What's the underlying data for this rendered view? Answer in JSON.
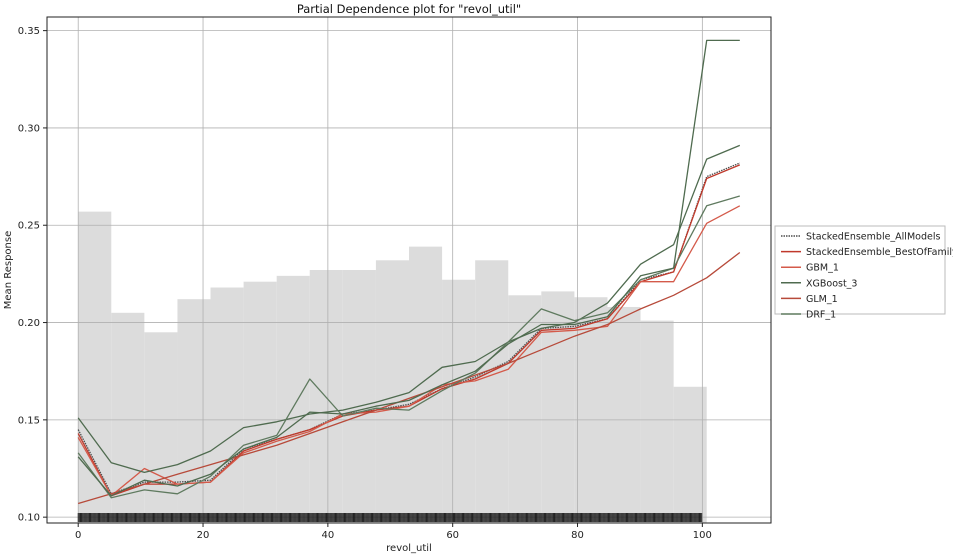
{
  "chart_data": {
    "type": "line",
    "title": "Partial Dependence plot for \"revol_util\"",
    "xlabel": "revol_util",
    "ylabel": "Mean Response",
    "xlim": [
      -5,
      111
    ],
    "ylim": [
      0.097,
      0.357
    ],
    "x_ticks": [
      0,
      20,
      40,
      60,
      80,
      100
    ],
    "y_ticks": [
      0.1,
      0.15,
      0.2,
      0.25,
      0.3,
      0.35
    ],
    "y_tick_labels": [
      "0.10",
      "0.15",
      "0.20",
      "0.25",
      "0.30",
      "0.35"
    ],
    "grid": true,
    "legend_position": "right",
    "x": [
      0,
      5.3,
      10.6,
      15.9,
      21.2,
      26.5,
      31.8,
      37.1,
      42.4,
      47.7,
      53,
      58.3,
      63.6,
      68.9,
      74.2,
      79.5,
      84.8,
      90.1,
      95.4,
      100.7,
      106
    ],
    "series": [
      {
        "name": "StackedEnsemble_AllModels",
        "color": "#4d4d4d",
        "dashed": true,
        "values": [
          0.145,
          0.112,
          0.118,
          0.118,
          0.119,
          0.135,
          0.14,
          0.145,
          0.153,
          0.155,
          0.158,
          0.166,
          0.172,
          0.18,
          0.197,
          0.198,
          0.202,
          0.222,
          0.226,
          0.275,
          0.282
        ]
      },
      {
        "name": "StackedEnsemble_BestOfFamily",
        "color": "#c0392b",
        "values": [
          0.143,
          0.111,
          0.117,
          0.117,
          0.118,
          0.134,
          0.14,
          0.145,
          0.152,
          0.155,
          0.157,
          0.166,
          0.171,
          0.179,
          0.196,
          0.197,
          0.202,
          0.221,
          0.226,
          0.274,
          0.281
        ]
      },
      {
        "name": "GBM_1",
        "color": "#d45a4a",
        "values": [
          0.141,
          0.111,
          0.125,
          0.117,
          0.118,
          0.133,
          0.139,
          0.144,
          0.153,
          0.154,
          0.157,
          0.168,
          0.17,
          0.176,
          0.195,
          0.196,
          0.198,
          0.221,
          0.221,
          0.251,
          0.26
        ]
      },
      {
        "name": "XGBoost_3",
        "color": "#4f6b4f",
        "values": [
          0.151,
          0.128,
          0.123,
          0.127,
          0.134,
          0.146,
          0.149,
          0.153,
          0.155,
          0.159,
          0.164,
          0.177,
          0.18,
          0.19,
          0.197,
          0.2,
          0.21,
          0.23,
          0.24,
          0.284,
          0.291
        ]
      },
      {
        "name": "GLM_1",
        "color": "#b74a3a",
        "values": [
          0.107,
          0.112,
          0.117,
          0.122,
          0.127,
          0.132,
          0.137,
          0.143,
          0.149,
          0.155,
          0.161,
          0.167,
          0.173,
          0.179,
          0.186,
          0.193,
          0.199,
          0.207,
          0.214,
          0.223,
          0.236
        ]
      },
      {
        "name": "DRF_1",
        "color": "#5f7a5f",
        "values": [
          0.133,
          0.11,
          0.114,
          0.112,
          0.121,
          0.137,
          0.142,
          0.171,
          0.152,
          0.156,
          0.155,
          0.165,
          0.174,
          0.19,
          0.207,
          0.201,
          0.205,
          0.222,
          0.228,
          0.26,
          0.265
        ]
      }
    ],
    "highlight_series": {
      "name": "",
      "color": "#4f6b4f",
      "values": [
        0.131,
        0.111,
        0.119,
        0.116,
        0.122,
        0.135,
        0.141,
        0.154,
        0.153,
        0.157,
        0.16,
        0.168,
        0.175,
        0.189,
        0.199,
        0.199,
        0.203,
        0.224,
        0.228,
        0.345,
        0.345
      ]
    },
    "histogram": {
      "color": "#dcdcdc",
      "bins": [
        {
          "x0": 0,
          "x1": 5.3,
          "height": 0.257
        },
        {
          "x0": 5.3,
          "x1": 10.6,
          "height": 0.205
        },
        {
          "x0": 10.6,
          "x1": 15.9,
          "height": 0.195
        },
        {
          "x0": 15.9,
          "x1": 21.2,
          "height": 0.212
        },
        {
          "x0": 21.2,
          "x1": 26.5,
          "height": 0.218
        },
        {
          "x0": 26.5,
          "x1": 31.8,
          "height": 0.221
        },
        {
          "x0": 31.8,
          "x1": 37.1,
          "height": 0.224
        },
        {
          "x0": 37.1,
          "x1": 42.4,
          "height": 0.227
        },
        {
          "x0": 42.4,
          "x1": 47.7,
          "height": 0.227
        },
        {
          "x0": 47.7,
          "x1": 53,
          "height": 0.232
        },
        {
          "x0": 53,
          "x1": 58.3,
          "height": 0.239
        },
        {
          "x0": 58.3,
          "x1": 63.6,
          "height": 0.222
        },
        {
          "x0": 63.6,
          "x1": 68.9,
          "height": 0.232
        },
        {
          "x0": 68.9,
          "x1": 74.2,
          "height": 0.214
        },
        {
          "x0": 74.2,
          "x1": 79.5,
          "height": 0.216
        },
        {
          "x0": 79.5,
          "x1": 84.8,
          "height": 0.213
        },
        {
          "x0": 84.8,
          "x1": 90.1,
          "height": 0.208
        },
        {
          "x0": 90.1,
          "x1": 95.4,
          "height": 0.201
        },
        {
          "x0": 95.4,
          "x1": 100.7,
          "height": 0.167
        }
      ]
    },
    "rug": {
      "color": "#111111",
      "x_from": 0,
      "x_to": 100
    }
  }
}
